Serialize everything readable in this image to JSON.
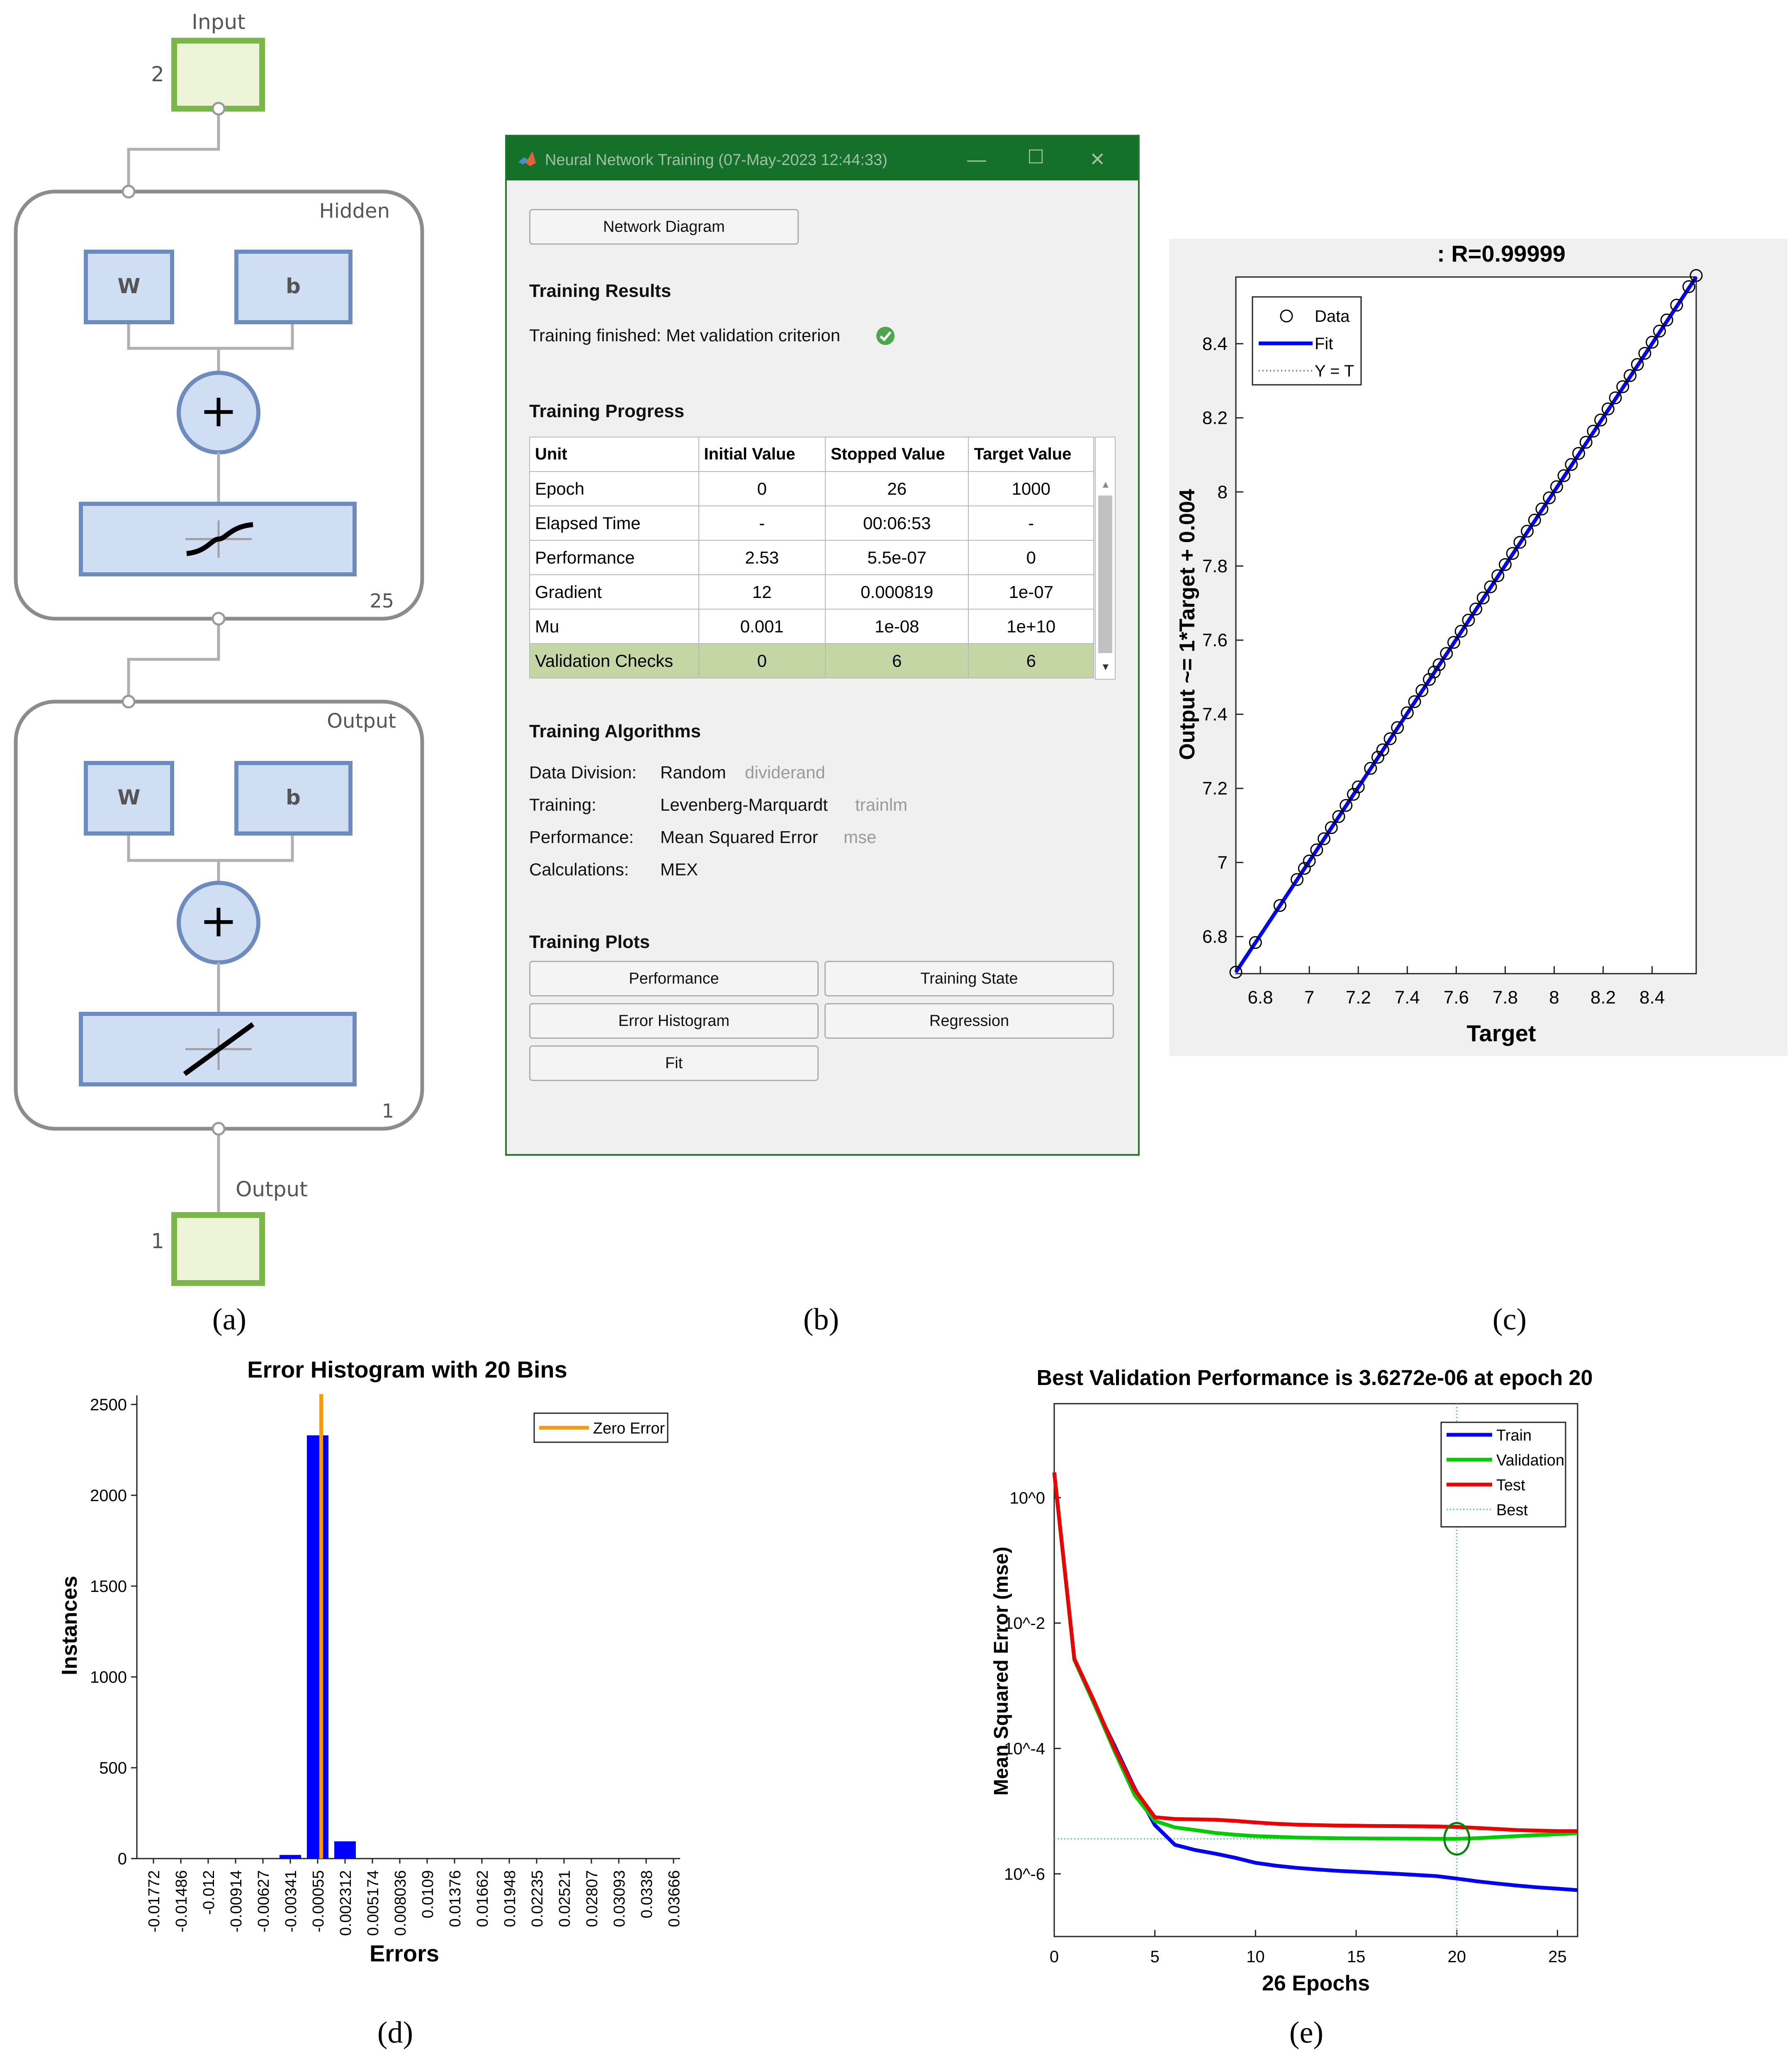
{
  "captions": [
    "(a)",
    "(b)",
    "(c)",
    "(d)",
    "(e)"
  ],
  "diagram": {
    "input_label": "Input",
    "input_size": "2",
    "hidden": {
      "title": "Hidden",
      "w": "W",
      "b": "b",
      "size": "25",
      "sum": "+"
    },
    "output_layer": {
      "title": "Output",
      "w": "W",
      "b": "b",
      "size": "1",
      "sum": "+"
    },
    "output_label": "Output",
    "output_size": "1"
  },
  "window": {
    "title": "Neural Network Training (07-May-2023 12:44:33)",
    "network_diagram_button": "Network Diagram",
    "results_heading": "Training Results",
    "results_text": "Training finished: Met validation criterion",
    "progress_heading": "Training Progress",
    "table_headers": [
      "Unit",
      "Initial Value",
      "Stopped Value",
      "Target Value"
    ],
    "rows": [
      [
        "Epoch",
        "0",
        "26",
        "1000"
      ],
      [
        "Elapsed Time",
        "-",
        "00:06:53",
        "-"
      ],
      [
        "Performance",
        "2.53",
        "5.5e-07",
        "0"
      ],
      [
        "Gradient",
        "12",
        "0.000819",
        "1e-07"
      ],
      [
        "Mu",
        "0.001",
        "1e-08",
        "1e+10"
      ],
      [
        "Validation Checks",
        "0",
        "6",
        "6"
      ]
    ],
    "algorithms_heading": "Training Algorithms",
    "algorithms": [
      {
        "label": "Data Division:",
        "value": "Random",
        "fn": "dividerand"
      },
      {
        "label": "Training:",
        "value": "Levenberg-Marquardt",
        "fn": "trainlm"
      },
      {
        "label": "Performance:",
        "value": "Mean Squared Error",
        "fn": "mse"
      },
      {
        "label": "Calculations:",
        "value": "MEX",
        "fn": ""
      }
    ],
    "plots_heading": "Training Plots",
    "plot_buttons": [
      "Performance",
      "Training State",
      "Error Histogram",
      "Regression",
      "Fit"
    ],
    "accent_color": "#15712a",
    "highlight_color": "#c5d6a5"
  },
  "chart_data": [
    {
      "id": "regression",
      "type": "scatter",
      "title": ": R=0.99999",
      "xlabel": "Target",
      "ylabel": "Output ~= 1*Target + 0.004",
      "xlim": [
        6.7,
        8.58
      ],
      "ylim": [
        6.7,
        8.58
      ],
      "xticks": [
        "6.8",
        "7",
        "7.2",
        "7.4",
        "7.6",
        "7.8",
        "8",
        "8.2",
        "8.4"
      ],
      "yticks": [
        "6.8",
        "7",
        "7.2",
        "7.4",
        "7.6",
        "7.8",
        "8",
        "8.2",
        "8.4"
      ],
      "legend": [
        "Data",
        "Fit",
        "Y = T"
      ],
      "legend_position": "top-left",
      "fit": {
        "slope": 1,
        "intercept": 0.004
      },
      "points_x": [
        6.7,
        6.78,
        6.88,
        6.95,
        6.98,
        7.0,
        7.03,
        7.06,
        7.09,
        7.12,
        7.15,
        7.18,
        7.2,
        7.25,
        7.28,
        7.3,
        7.33,
        7.36,
        7.4,
        7.43,
        7.46,
        7.49,
        7.51,
        7.53,
        7.56,
        7.59,
        7.62,
        7.65,
        7.68,
        7.71,
        7.74,
        7.77,
        7.8,
        7.83,
        7.86,
        7.89,
        7.92,
        7.95,
        7.98,
        8.01,
        8.04,
        8.07,
        8.1,
        8.13,
        8.16,
        8.19,
        8.22,
        8.25,
        8.28,
        8.31,
        8.34,
        8.37,
        8.4,
        8.43,
        8.46,
        8.5,
        8.55,
        8.58
      ],
      "colors": {
        "data": "#000000",
        "fit": "#0000ff",
        "yt": "#888888"
      }
    },
    {
      "id": "histogram",
      "type": "bar",
      "title": "Error Histogram with 20 Bins",
      "xlabel": "Errors",
      "ylabel": "Instances",
      "ylim": [
        0,
        2550
      ],
      "yticks": [
        "0",
        "500",
        "1000",
        "1500",
        "2000",
        "2500"
      ],
      "categories": [
        "-0.01772",
        "-0.01486",
        "-0.012",
        "-0.00914",
        "-0.00627",
        "-0.00341",
        "-0.00055",
        "0.002312",
        "0.005174",
        "0.008036",
        "0.0109",
        "0.01376",
        "0.01662",
        "0.01948",
        "0.02235",
        "0.02521",
        "0.02807",
        "0.03093",
        "0.0338",
        "0.03666"
      ],
      "values": [
        0,
        0,
        0,
        0,
        0,
        20,
        2330,
        95,
        0,
        0,
        0,
        0,
        0,
        0,
        0,
        0,
        0,
        0,
        0,
        0
      ],
      "zero_error_label": "Zero Error",
      "zero_error_x": -0.00018,
      "colors": {
        "bar": "#0000ff",
        "zero": "#f39c12"
      }
    },
    {
      "id": "performance",
      "type": "line",
      "title": "Best Validation Performance is 3.6272e-06 at epoch 20",
      "xlabel": "26 Epochs",
      "ylabel": "Mean Squared Error  (mse)",
      "xlim": [
        0,
        26
      ],
      "ylim_log10": [
        -7,
        1.5
      ],
      "xticks": [
        "0",
        "5",
        "10",
        "15",
        "20",
        "25"
      ],
      "yticks": [
        "10^0",
        "10^-2",
        "10^-4",
        "10^-6"
      ],
      "best_epoch": 20,
      "best_value": 3.6272e-06,
      "legend": [
        "Train",
        "Validation",
        "Test",
        "Best"
      ],
      "legend_position": "top-right",
      "epochs": [
        0,
        1,
        2,
        3,
        4,
        5,
        6,
        7,
        8,
        9,
        10,
        11,
        12,
        13,
        14,
        15,
        16,
        17,
        18,
        19,
        20,
        21,
        22,
        23,
        24,
        25,
        26
      ],
      "series": [
        {
          "name": "Train",
          "color": "#0000ff",
          "values": [
            2.53,
            0.0026,
            0.0005,
            0.00011,
            2.3e-05,
            6e-06,
            2.9e-06,
            2.4e-06,
            2.1e-06,
            1.8e-06,
            1.5e-06,
            1.35e-06,
            1.25e-06,
            1.18e-06,
            1.12e-06,
            1.08e-06,
            1.04e-06,
            1e-06,
            9.6e-07,
            9.2e-07,
            8.4e-07,
            7.6e-07,
            7e-07,
            6.5e-07,
            6.1e-07,
            5.8e-07,
            5.5e-07
          ]
        },
        {
          "name": "Validation",
          "color": "#00cc00",
          "values": [
            2.53,
            0.0026,
            0.0005,
            9e-05,
            1.8e-05,
            7e-06,
            5.5e-06,
            5e-06,
            4.5e-06,
            4.2e-06,
            4e-06,
            3.9e-06,
            3.8e-06,
            3.75e-06,
            3.7e-06,
            3.68e-06,
            3.66e-06,
            3.65e-06,
            3.64e-06,
            3.63e-06,
            3.6272e-06,
            3.7e-06,
            3.85e-06,
            4e-06,
            4.15e-06,
            4.3e-06,
            4.45e-06
          ]
        },
        {
          "name": "Test",
          "color": "#ee0000",
          "values": [
            2.53,
            0.0027,
            0.00055,
            0.0001,
            2.2e-05,
            8e-06,
            7.5e-06,
            7.4e-06,
            7.3e-06,
            7e-06,
            6.6e-06,
            6.3e-06,
            6.1e-06,
            6e-06,
            5.9e-06,
            5.85e-06,
            5.8e-06,
            5.78e-06,
            5.75e-06,
            5.7e-06,
            5.6e-06,
            5.4e-06,
            5.2e-06,
            5e-06,
            4.9e-06,
            4.8e-06,
            4.8e-06
          ]
        }
      ]
    }
  ]
}
